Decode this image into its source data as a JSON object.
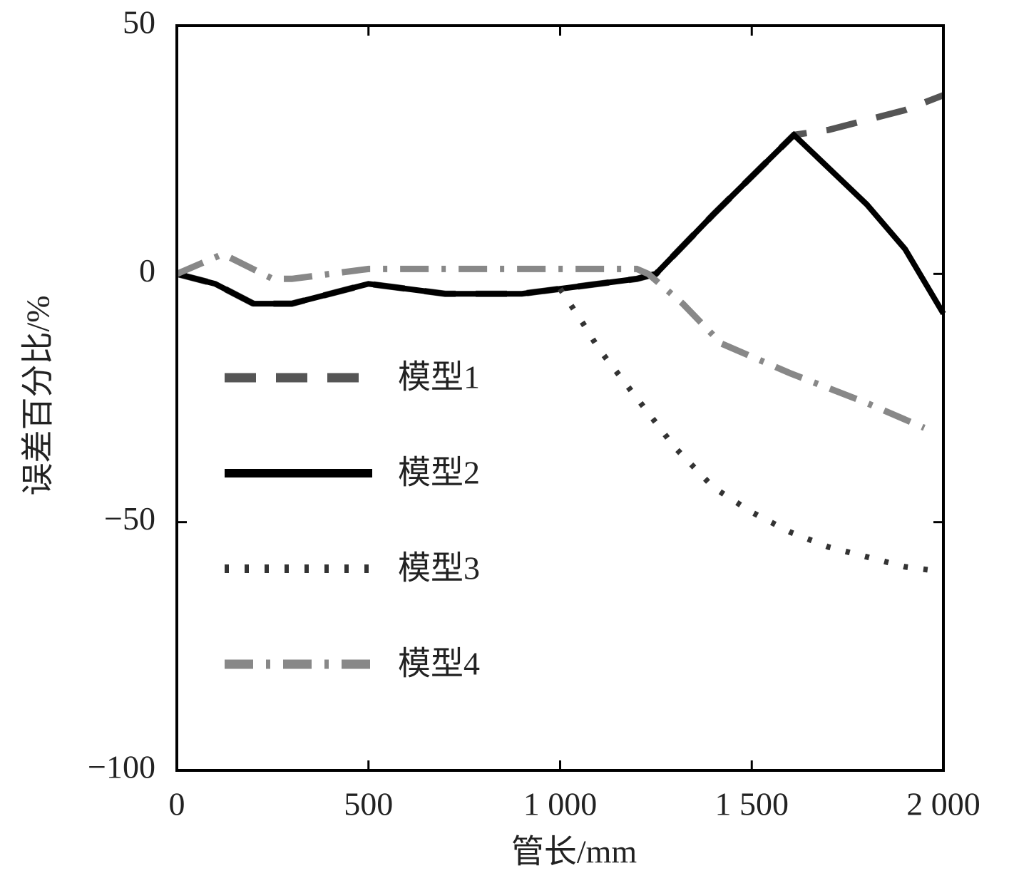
{
  "chart_data": {
    "type": "line",
    "x_label": "管长/mm",
    "y_label": "误差百分比/%",
    "xlim": [
      0,
      2000
    ],
    "ylim": [
      -100,
      50
    ],
    "xticks": [
      0,
      500,
      {
        "value": 1000,
        "label": "1 000"
      },
      {
        "value": 1500,
        "label": "1 500"
      },
      {
        "value": 2000,
        "label": "2 000"
      }
    ],
    "yticks": [
      50,
      0,
      {
        "value": -50,
        "label": "−50"
      },
      {
        "value": -100,
        "label": "−100"
      }
    ],
    "series": [
      {
        "name": "模型1",
        "color": "#555555",
        "dash": "dashed",
        "x": [
          0,
          100,
          200,
          300,
          400,
          500,
          600,
          700,
          800,
          900,
          1000,
          1100,
          1200,
          1250,
          1400,
          1610,
          1700,
          1800,
          1900,
          2000
        ],
        "values": [
          0,
          -2,
          -6,
          -6,
          -4,
          -2,
          -3,
          -4,
          -4,
          -4,
          -3,
          -2,
          -1,
          0,
          12,
          28,
          29,
          31,
          33,
          36
        ]
      },
      {
        "name": "模型2",
        "color": "#000000",
        "dash": "solid",
        "x": [
          0,
          100,
          200,
          300,
          400,
          500,
          600,
          700,
          800,
          900,
          1000,
          1100,
          1200,
          1250,
          1400,
          1610,
          1800,
          1900,
          2000
        ],
        "values": [
          0,
          -2,
          -6,
          -6,
          -4,
          -2,
          -3,
          -4,
          -4,
          -4,
          -3,
          -2,
          -1,
          0,
          12,
          28,
          14,
          5,
          -8
        ]
      },
      {
        "name": "模型3",
        "color": "#333333",
        "dash": "dotted",
        "x": [
          1000,
          1060,
          1100,
          1170,
          1250,
          1300,
          1400,
          1500,
          1600,
          1700,
          1800,
          1900,
          2000
        ],
        "values": [
          -3,
          -10,
          -15,
          -22,
          -30,
          -35,
          -43,
          -48,
          -52,
          -55,
          -57,
          -59,
          -60
        ]
      },
      {
        "name": "模型4",
        "color": "#888888",
        "dash": "dashdot",
        "x": [
          0,
          120,
          250,
          300,
          400,
          500,
          700,
          900,
          1200,
          1230,
          1320,
          1420,
          1600,
          1800,
          1950
        ],
        "values": [
          0,
          4,
          -1,
          -1,
          0,
          1,
          1,
          1,
          1,
          0,
          -6,
          -14,
          -20,
          -26,
          -31
        ]
      }
    ]
  }
}
